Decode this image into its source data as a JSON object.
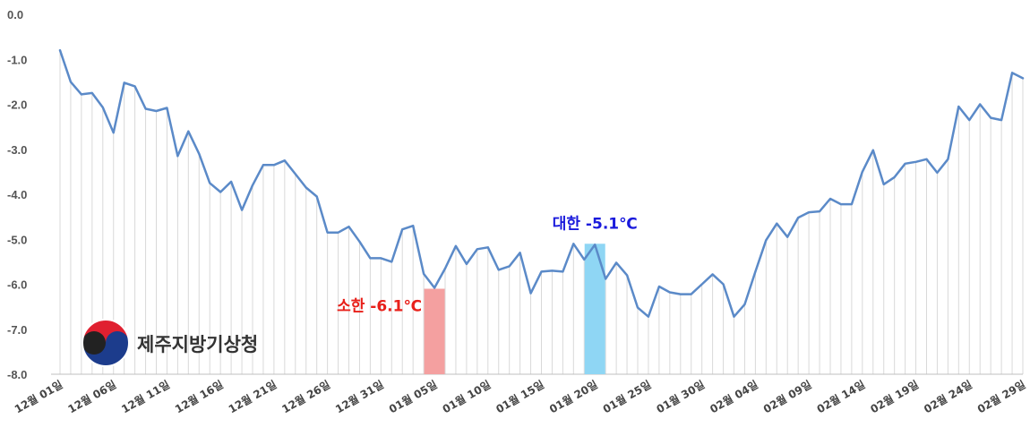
{
  "chart_data": {
    "type": "line",
    "x_start": "12월 01일",
    "x_end": "02월 29일",
    "x_tick_labels": [
      "12월 01일",
      "12월 06일",
      "12월 11일",
      "12월 16일",
      "12월 21일",
      "12월 26일",
      "12월 31일",
      "01월 05일",
      "01월 10일",
      "01월 15일",
      "01월 20일",
      "01월 25일",
      "01월 30일",
      "02월 04일",
      "02월 09일",
      "02월 14일",
      "02월 19일",
      "02월 24일",
      "02월 29일"
    ],
    "x_tick_every": 5,
    "y_tick_labels": [
      "0.0",
      "-1.0",
      "-2.0",
      "-3.0",
      "-4.0",
      "-5.0",
      "-6.0",
      "-7.0",
      "-8.0"
    ],
    "ylim": [
      -8.0,
      0.0
    ],
    "grid": "vertical lines at each day",
    "series": [
      {
        "color": "#5b8ac8",
        "values": [
          -0.8,
          -1.5,
          -1.78,
          -1.75,
          -2.07,
          -2.63,
          -1.52,
          -1.6,
          -2.1,
          -2.15,
          -2.08,
          -3.15,
          -2.6,
          -3.1,
          -3.75,
          -3.95,
          -3.72,
          -4.35,
          -3.8,
          -3.35,
          -3.35,
          -3.25,
          -3.55,
          -3.85,
          -4.05,
          -4.85,
          -4.85,
          -4.72,
          -5.05,
          -5.42,
          -5.42,
          -5.5,
          -4.78,
          -4.7,
          -5.77,
          -6.08,
          -5.65,
          -5.15,
          -5.55,
          -5.22,
          -5.18,
          -5.68,
          -5.6,
          -5.3,
          -6.2,
          -5.72,
          -5.7,
          -5.72,
          -5.1,
          -5.45,
          -5.12,
          -5.88,
          -5.52,
          -5.8,
          -6.52,
          -6.72,
          -6.05,
          -6.18,
          -6.22,
          -6.22,
          -6.0,
          -5.78,
          -6.0,
          -6.72,
          -6.45,
          -5.72,
          -5.02,
          -4.65,
          -4.95,
          -4.52,
          -4.4,
          -4.38,
          -4.1,
          -4.22,
          -4.22,
          -3.5,
          -3.02,
          -3.78,
          -3.62,
          -3.32,
          -3.28,
          -3.22,
          -3.52,
          -3.22,
          -2.05,
          -2.35,
          -2.0,
          -2.3,
          -2.35,
          -1.3,
          -1.42
        ]
      }
    ],
    "annotations": [
      {
        "label": "소한 -6.1℃",
        "color": "#e8201a",
        "bar_color": "#f4a0a0",
        "x_index": 35,
        "value": -6.1
      },
      {
        "label": "대한 -5.1℃",
        "color": "#1a1adc",
        "bar_color": "#8fd6f4",
        "x_index": 50,
        "value": -5.1
      }
    ]
  },
  "logo": {
    "text": "제주지방기상청",
    "colors": {
      "red": "#e02030",
      "blue": "#1c3c8c",
      "black": "#222222"
    }
  }
}
